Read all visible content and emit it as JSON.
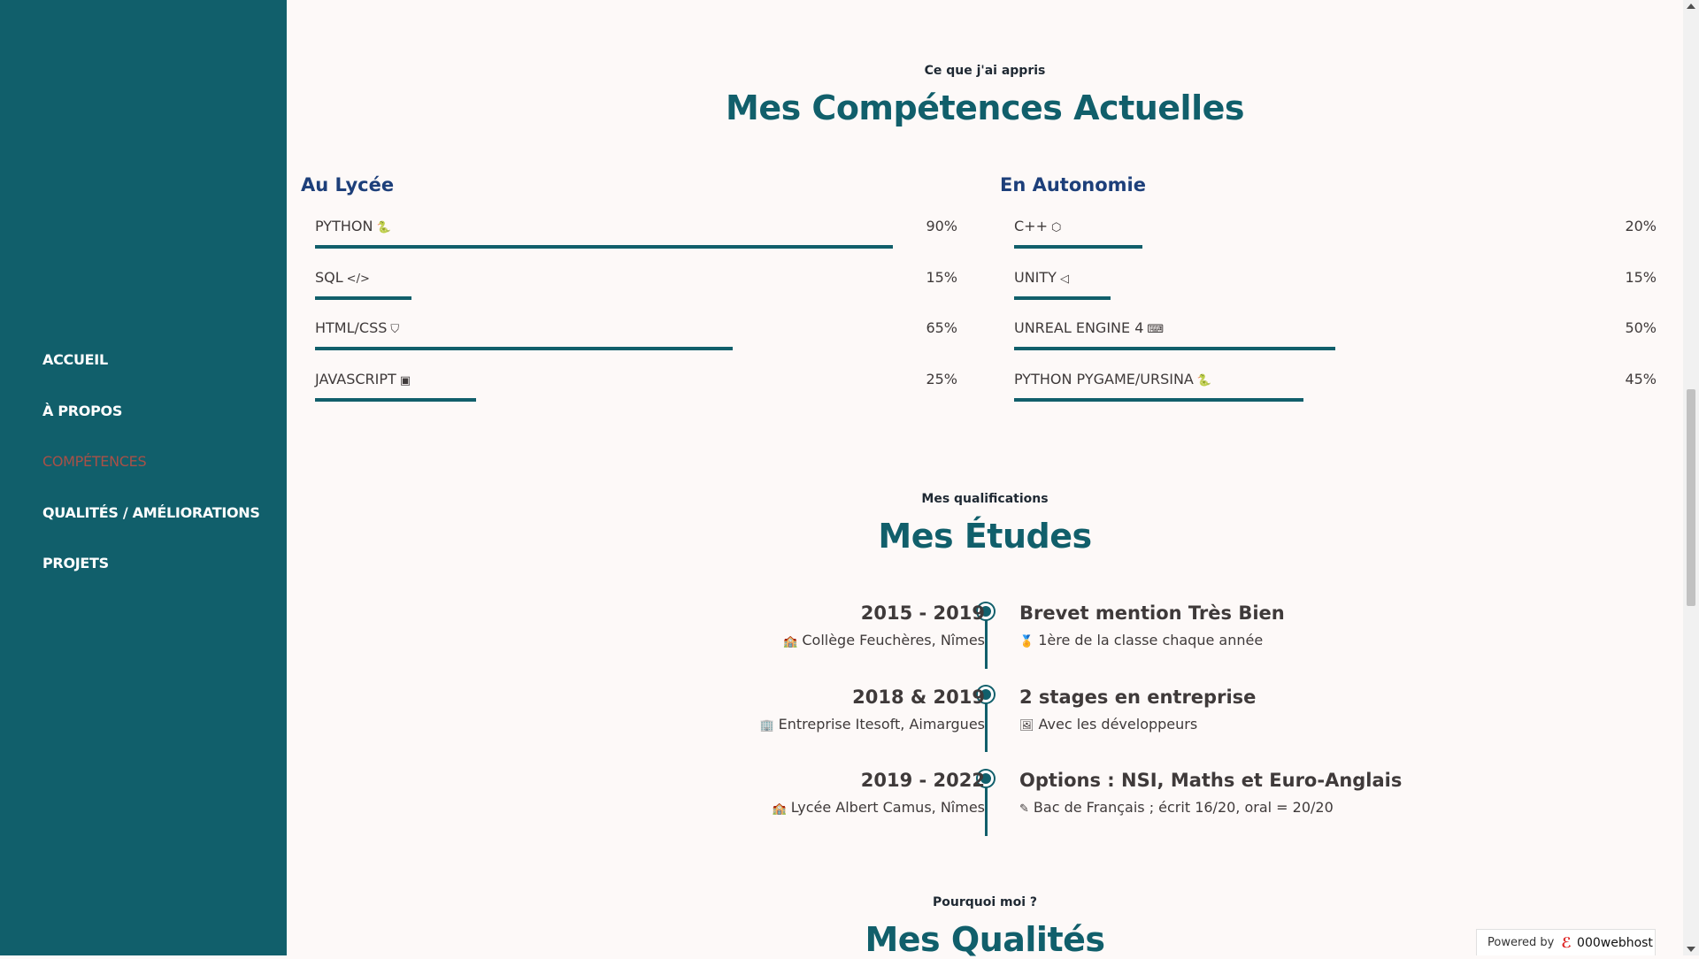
{
  "nav": {
    "items": [
      {
        "label": "ACCUEIL"
      },
      {
        "label": "À PROPOS"
      },
      {
        "label": "COMPÉTENCES"
      },
      {
        "label": "QUALITÉS / AMÉLIORATIONS"
      },
      {
        "label": "PROJETS"
      }
    ],
    "active_index": 2
  },
  "skills": {
    "subtitle": "Ce que j'ai appris",
    "title": "Mes Compétences Actuelles",
    "columns": [
      {
        "heading": "Au Lycée",
        "items": [
          {
            "name": "PYTHON",
            "icon": "🐍",
            "icon_name": "python-icon",
            "percent_label": "90%",
            "percent": 90
          },
          {
            "name": "SQL",
            "icon": "</>",
            "icon_name": "code-icon",
            "percent_label": "15%",
            "percent": 15
          },
          {
            "name": "HTML/CSS",
            "icon": "⛉",
            "icon_name": "html5-icon",
            "percent_label": "65%",
            "percent": 65
          },
          {
            "name": "JAVASCRIPT",
            "icon": "▣",
            "icon_name": "js-icon",
            "percent_label": "25%",
            "percent": 25
          }
        ]
      },
      {
        "heading": "En Autonomie",
        "items": [
          {
            "name": "C++",
            "icon": "⬡",
            "icon_name": "cpp-icon",
            "percent_label": "20%",
            "percent": 20
          },
          {
            "name": "UNITY",
            "icon": "◁",
            "icon_name": "unity-icon",
            "percent_label": "15%",
            "percent": 15
          },
          {
            "name": "UNREAL ENGINE 4",
            "icon": "⌨",
            "icon_name": "gamepad-icon",
            "percent_label": "50%",
            "percent": 50
          },
          {
            "name": "PYTHON PYGAME/URSINA",
            "icon": "🐍",
            "icon_name": "python-icon",
            "percent_label": "45%",
            "percent": 45
          }
        ]
      }
    ]
  },
  "studies": {
    "subtitle": "Mes qualifications",
    "title": "Mes Études",
    "items": [
      {
        "date": "2015 - 2019",
        "place_icon": "🏫",
        "place": "Collège Feuchères, Nîmes",
        "heading": "Brevet mention Très Bien",
        "detail_icon": "🏅",
        "detail": "1ère de la classe chaque année"
      },
      {
        "date": "2018 & 2019",
        "place_icon": "🏢",
        "place": "Entreprise Itesoft, Aimargues",
        "heading": "2 stages en entreprise",
        "detail_icon": "🖼",
        "detail": "Avec les développeurs"
      },
      {
        "date": "2019 - 2022",
        "place_icon": "🏫",
        "place": "Lycée Albert Camus, Nîmes",
        "heading": "Options : NSI, Maths et Euro-Anglais",
        "detail_icon": "✎",
        "detail": "Bac de Français ; écrit 16/20, oral = 20/20"
      }
    ]
  },
  "qualities": {
    "subtitle": "Pourquoi moi ?",
    "title": "Mes Qualités"
  },
  "footer": {
    "powered_label": "Powered by",
    "brand": "000webhost"
  },
  "colors": {
    "accent": "#115f6b",
    "heading_blue": "#1d3f7a",
    "active_nav": "#a85047",
    "background": "#fdf9f8"
  }
}
